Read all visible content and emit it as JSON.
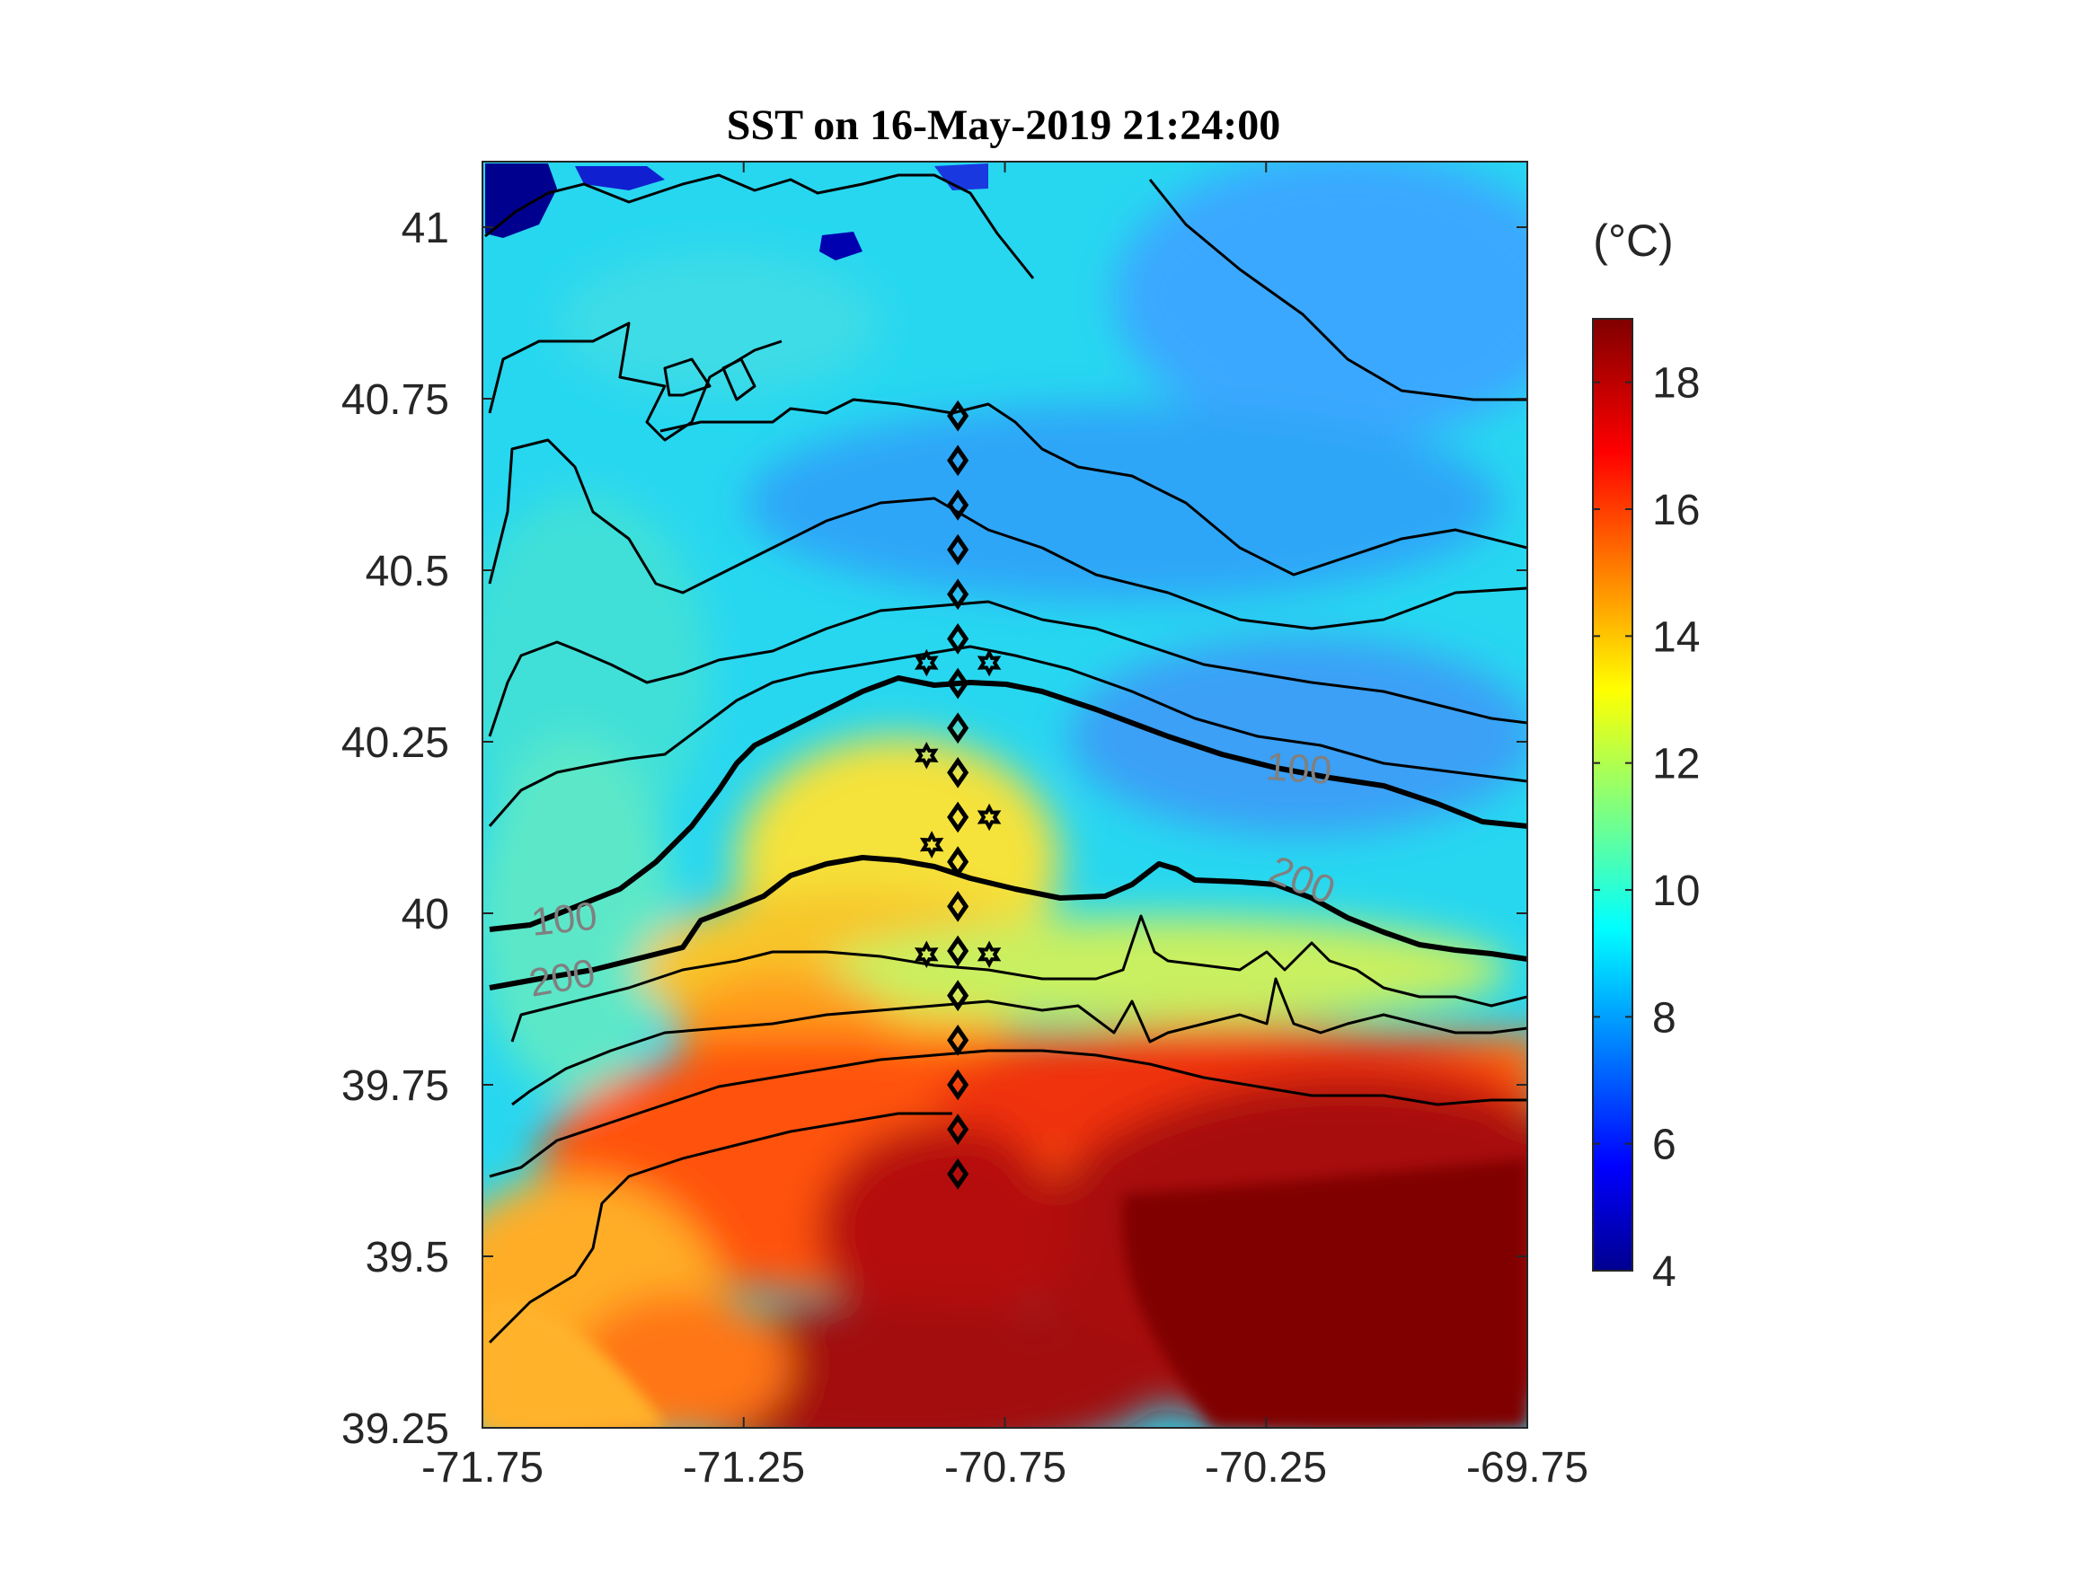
{
  "title": "SST on 16-May-2019 21:24:00",
  "colorbar": {
    "unit_label": "(°C)",
    "min": 4,
    "max": 19,
    "ticks": [
      "4",
      "6",
      "8",
      "10",
      "12",
      "14",
      "16",
      "18"
    ],
    "colormap": "jet"
  },
  "x_axis": {
    "ticks": [
      "-71.75",
      "-71.25",
      "-70.75",
      "-70.25",
      "-69.75"
    ],
    "range": [
      -71.75,
      -69.75
    ]
  },
  "y_axis": {
    "ticks": [
      "39.25",
      "39.5",
      "39.75",
      "40",
      "40.25",
      "40.5",
      "40.75",
      "41"
    ],
    "range": [
      39.25,
      41.1
    ]
  },
  "contour_labels": [
    {
      "text": "100",
      "near": "west"
    },
    {
      "text": "200",
      "near": "west"
    },
    {
      "text": "100",
      "near": "east"
    },
    {
      "text": "200",
      "near": "east"
    }
  ],
  "map_features": {
    "sst_field": "cold shelf water (~9-10 °C) in north, warm slope/Gulf Stream water (17-19 °C) in south",
    "contours": "black isobaths; thick lines are the 100 m and 200 m isobaths",
    "station_markers": "diamonds along -70.84 from 39.62 to 40.72; star markers flanking the line"
  },
  "colors": {
    "contour": "#000000",
    "contour_label": "#808080",
    "axis": "#262626",
    "title": "#000000"
  }
}
